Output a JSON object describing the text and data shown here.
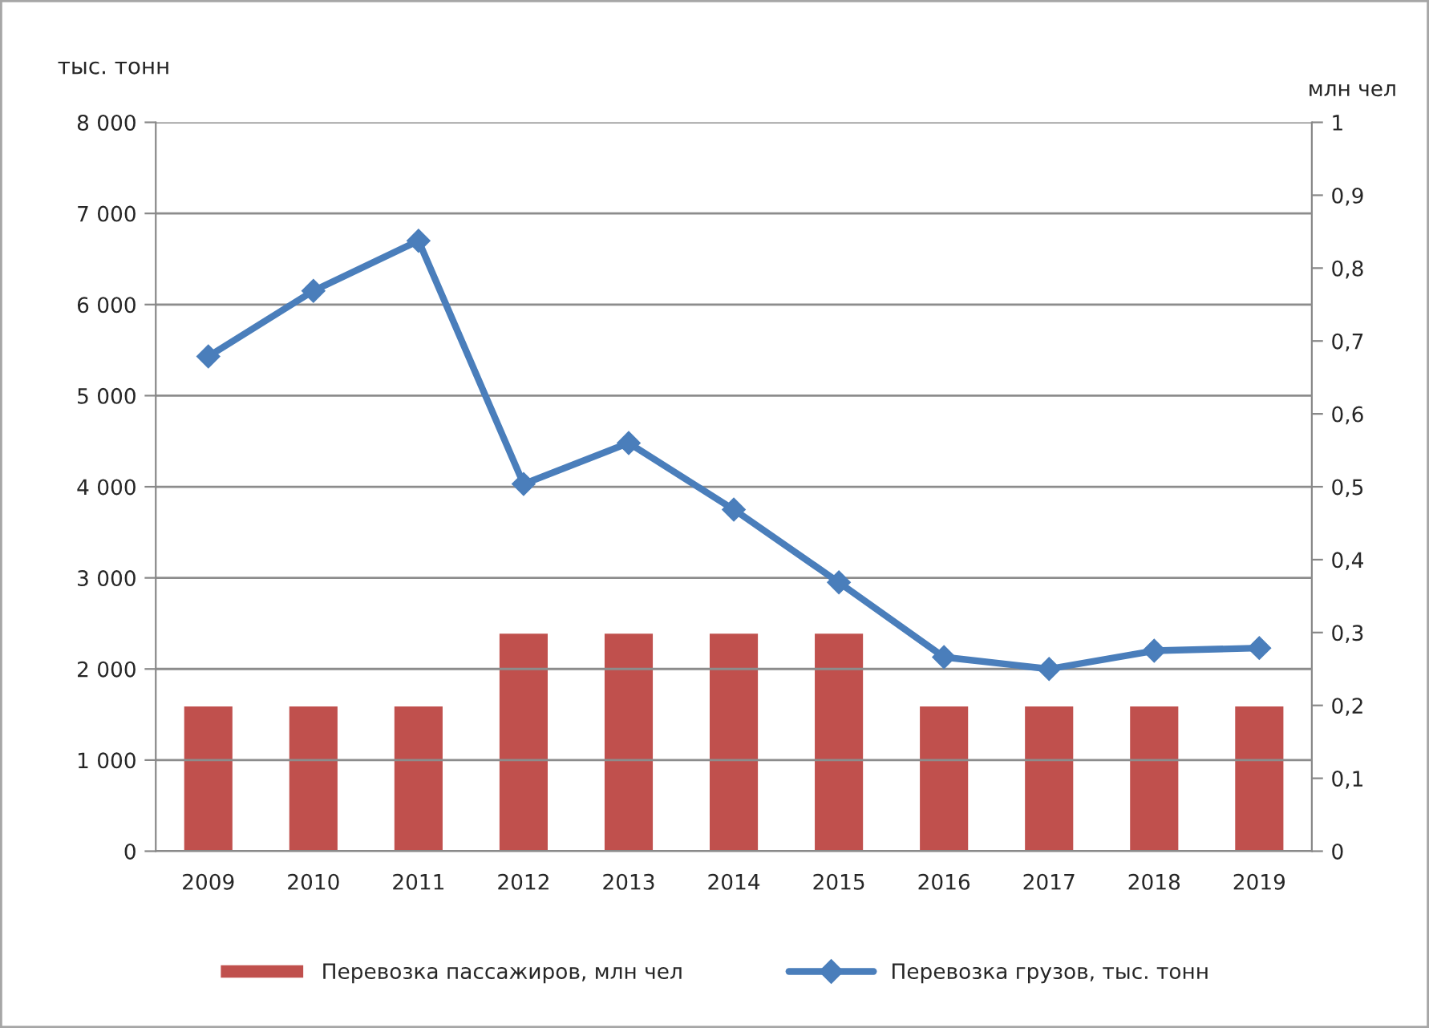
{
  "chart_data": {
    "type": "bar",
    "categories": [
      "2009",
      "2010",
      "2011",
      "2012",
      "2013",
      "2014",
      "2015",
      "2016",
      "2017",
      "2018",
      "2019"
    ],
    "ylabel": "тыс. тонн",
    "y2label": "млн чел",
    "ylim": [
      0,
      8000
    ],
    "yticks": [
      0,
      {
        "value": 1000,
        "label": "1 000"
      },
      {
        "value": 2000,
        "label": "2 000"
      },
      {
        "value": 3000,
        "label": "3 000"
      },
      {
        "value": 4000,
        "label": "4 000"
      },
      {
        "value": 5000,
        "label": "5 000"
      },
      {
        "value": 6000,
        "label": "6 000"
      },
      {
        "value": 7000,
        "label": "7 000"
      },
      {
        "value": 8000,
        "label": "8 000"
      }
    ],
    "y2lim": [
      0,
      1
    ],
    "y2ticks": [
      0,
      {
        "value": 0.1,
        "label": "0,1"
      },
      {
        "value": 0.2,
        "label": "0,2"
      },
      {
        "value": 0.3,
        "label": "0,3"
      },
      {
        "value": 0.4,
        "label": "0,4"
      },
      {
        "value": 0.5,
        "label": "0,5"
      },
      {
        "value": 0.6,
        "label": "0,6"
      },
      {
        "value": 0.7,
        "label": "0,7"
      },
      {
        "value": 0.8,
        "label": "0,8"
      },
      {
        "value": 0.9,
        "label": "0,9"
      },
      1
    ],
    "series": [
      {
        "name": "Перевозка пассажиров, млн чел",
        "axis": "y2",
        "color": "#c0504d",
        "values": [
          0.2,
          0.2,
          0.2,
          0.3,
          0.3,
          0.3,
          0.3,
          0.2,
          0.2,
          0.2,
          0.2
        ]
      },
      {
        "name": "Перевозка грузов, тыс. тонн",
        "type": "line",
        "color": "#4a7ebb",
        "values": [
          5430,
          6150,
          6700,
          4030,
          4480,
          3750,
          2950,
          2130,
          2000,
          2200,
          2230
        ]
      }
    ],
    "marker": "diamond",
    "grid": "y",
    "legend": "bottom"
  }
}
